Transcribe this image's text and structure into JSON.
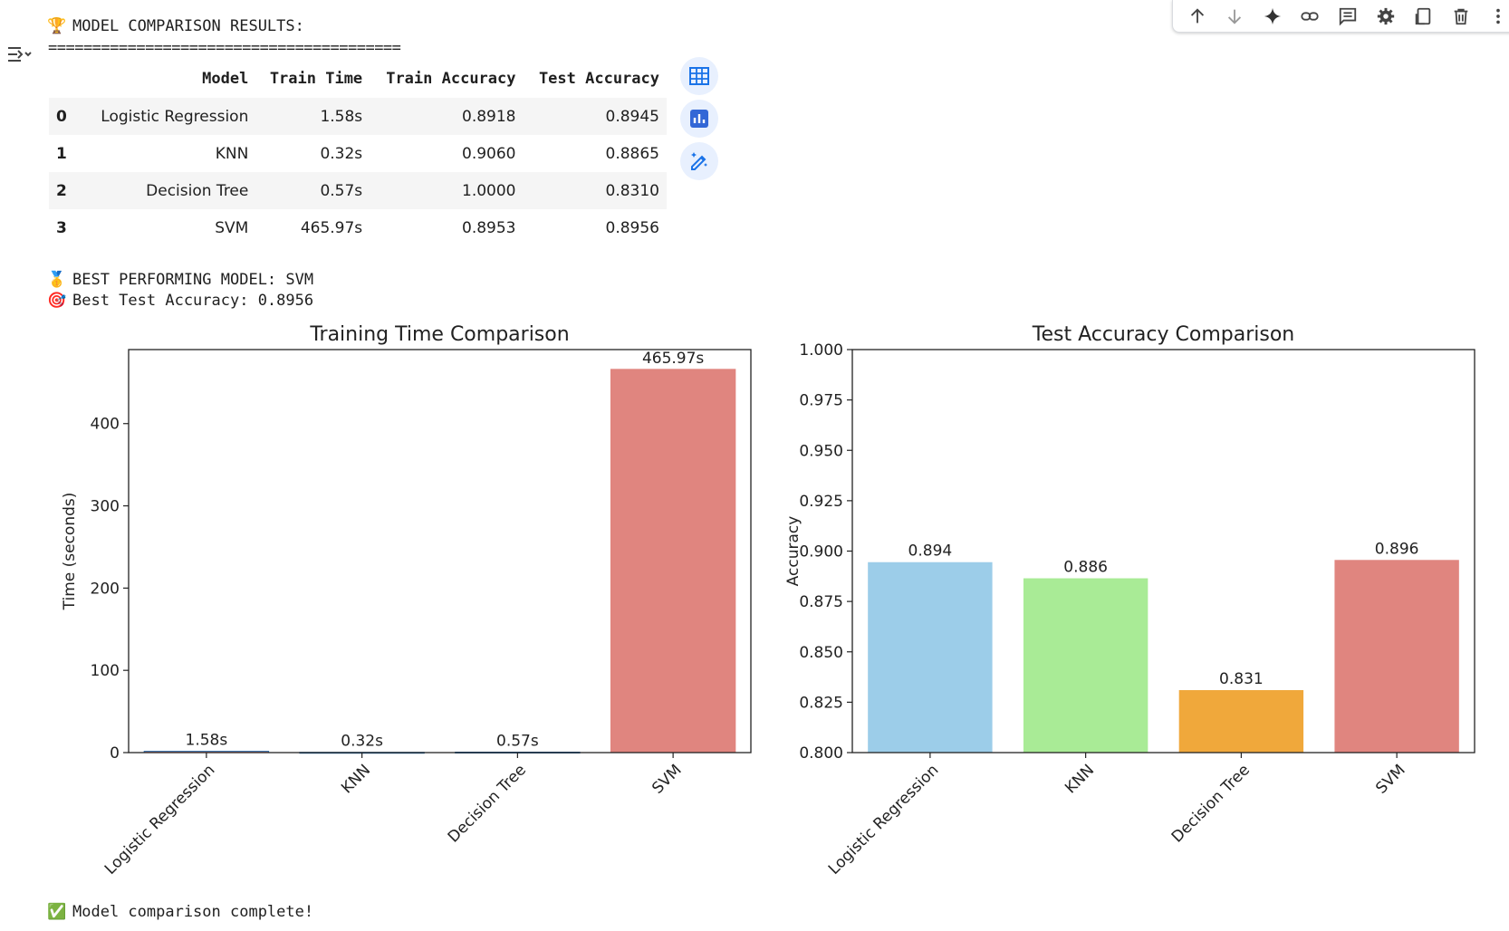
{
  "toolbar": {
    "buttons": [
      {
        "name": "move-up-icon"
      },
      {
        "name": "move-down-icon"
      },
      {
        "name": "gemini-sparkle-icon"
      },
      {
        "name": "link-icon"
      },
      {
        "name": "comment-icon"
      },
      {
        "name": "gear-icon"
      },
      {
        "name": "mirror-cell-icon"
      },
      {
        "name": "delete-icon"
      },
      {
        "name": "more-vert-icon"
      }
    ]
  },
  "output": {
    "header": "MODEL COMPARISON RESULTS:",
    "separator": "========================================",
    "best_model": "BEST PERFORMING MODEL: SVM",
    "best_accuracy": "Best Test Accuracy: 0.8956",
    "complete": "Model comparison complete!"
  },
  "table": {
    "columns": [
      "",
      "Model",
      "Train Time",
      "Train Accuracy",
      "Test Accuracy"
    ],
    "rows": [
      [
        "0",
        "Logistic Regression",
        "1.58s",
        "0.8918",
        "0.8945"
      ],
      [
        "1",
        "KNN",
        "0.32s",
        "0.9060",
        "0.8865"
      ],
      [
        "2",
        "Decision Tree",
        "0.57s",
        "1.0000",
        "0.8310"
      ],
      [
        "3",
        "SVM",
        "465.97s",
        "0.8953",
        "0.8956"
      ]
    ]
  },
  "colors": {
    "lr": "#9ccde9",
    "knn": "#a9eb96",
    "dt": "#f0a83b",
    "svm": "#e0857f",
    "accent": "#1a73e8"
  },
  "chart_data": [
    {
      "type": "bar",
      "title": "Training Time Comparison",
      "xlabel": "",
      "ylabel": "Time (seconds)",
      "categories": [
        "Logistic Regression",
        "KNN",
        "Decision Tree",
        "SVM"
      ],
      "values": [
        1.58,
        0.32,
        0.57,
        465.97
      ],
      "labels": [
        "1.58s",
        "0.32s",
        "0.57s",
        "465.97s"
      ],
      "ylim": [
        0,
        490
      ],
      "yticks": [
        0,
        100,
        200,
        300,
        400
      ],
      "grid": false
    },
    {
      "type": "bar",
      "title": "Test Accuracy Comparison",
      "xlabel": "",
      "ylabel": "Accuracy",
      "categories": [
        "Logistic Regression",
        "KNN",
        "Decision Tree",
        "SVM"
      ],
      "values": [
        0.8945,
        0.8865,
        0.831,
        0.8956
      ],
      "labels": [
        "0.894",
        "0.886",
        "0.831",
        "0.896"
      ],
      "ylim": [
        0.8,
        1.0
      ],
      "yticks": [
        "0.800",
        "0.825",
        "0.850",
        "0.875",
        "0.900",
        "0.925",
        "0.950",
        "0.975",
        "1.000"
      ],
      "grid": false
    }
  ]
}
